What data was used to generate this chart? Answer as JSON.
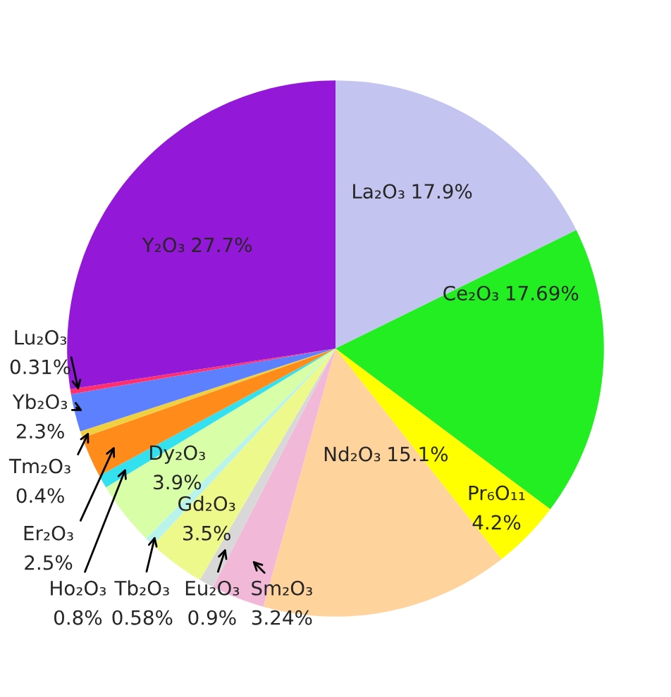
{
  "chart_data": {
    "type": "pie",
    "categories": [
      "La₂O₃",
      "Ce₂O₃",
      "Pr₆O₁₁",
      "Nd₂O₃",
      "Sm₂O₃",
      "Eu₂O₃",
      "Gd₂O₃",
      "Tb₂O₃",
      "Dy₂O₃",
      "Ho₂O₃",
      "Er₂O₃",
      "Tm₂O₃",
      "Yb₂O₃",
      "Lu₂O₃",
      "Y₂O₃"
    ],
    "values": [
      17.9,
      17.69,
      4.2,
      15.1,
      3.24,
      0.9,
      3.5,
      0.58,
      3.9,
      0.8,
      2.5,
      0.4,
      2.3,
      0.31,
      27.7
    ],
    "colors": [
      "#c4c4f0",
      "#22ee22",
      "#ffff00",
      "#ffd39b",
      "#f2b8d8",
      "#d8d8d8",
      "#eef98c",
      "#b8f4ec",
      "#d8ffa8",
      "#33e0f0",
      "#ff8c1a",
      "#f0d040",
      "#5c80ff",
      "#ff3070",
      "#9418d8"
    ],
    "value_labels": [
      "17.9%",
      "17.69%",
      "4.2%",
      "15.1%",
      "3.24%",
      "0.9%",
      "3.5%",
      "0.58%",
      "3.9%",
      "0.8%",
      "2.5%",
      "0.4%",
      "2.3%",
      "0.31%",
      "27.7%"
    ],
    "legend": false
  }
}
